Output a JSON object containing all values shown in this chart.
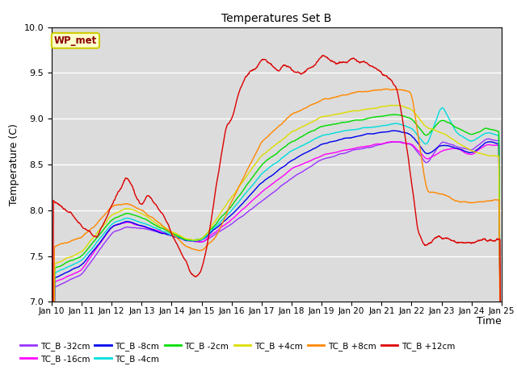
{
  "title": "Temperatures Set B",
  "xlabel": "Time",
  "ylabel": "Temperature (C)",
  "ylim": [
    7.0,
    10.0
  ],
  "yticks": [
    7.0,
    7.5,
    8.0,
    8.5,
    9.0,
    9.5,
    10.0
  ],
  "xtick_labels": [
    "Jan 10",
    "Jan 11",
    "Jan 12",
    "Jan 13",
    "Jan 14",
    "Jan 15",
    "Jan 16",
    "Jan 17",
    "Jan 18",
    "Jan 19",
    "Jan 20",
    "Jan 21",
    "Jan 22",
    "Jan 23",
    "Jan 24",
    "Jan 25"
  ],
  "annotation_text": "WP_met",
  "annotation_color": "#8B0000",
  "annotation_bg": "#FFFFCC",
  "annotation_border": "#CCCC00",
  "plot_bg_color": "#DCDCDC",
  "fig_bg_color": "#FFFFFF",
  "series": [
    {
      "label": "TC_B -32cm",
      "color": "#9933FF"
    },
    {
      "label": "TC_B -16cm",
      "color": "#FF00FF"
    },
    {
      "label": "TC_B -8cm",
      "color": "#0000EE"
    },
    {
      "label": "TC_B -4cm",
      "color": "#00DDDD"
    },
    {
      "label": "TC_B -2cm",
      "color": "#00DD00"
    },
    {
      "label": "TC_B +4cm",
      "color": "#DDDD00"
    },
    {
      "label": "TC_B +8cm",
      "color": "#FF8800"
    },
    {
      "label": "TC_B +12cm",
      "color": "#DD0000"
    }
  ]
}
